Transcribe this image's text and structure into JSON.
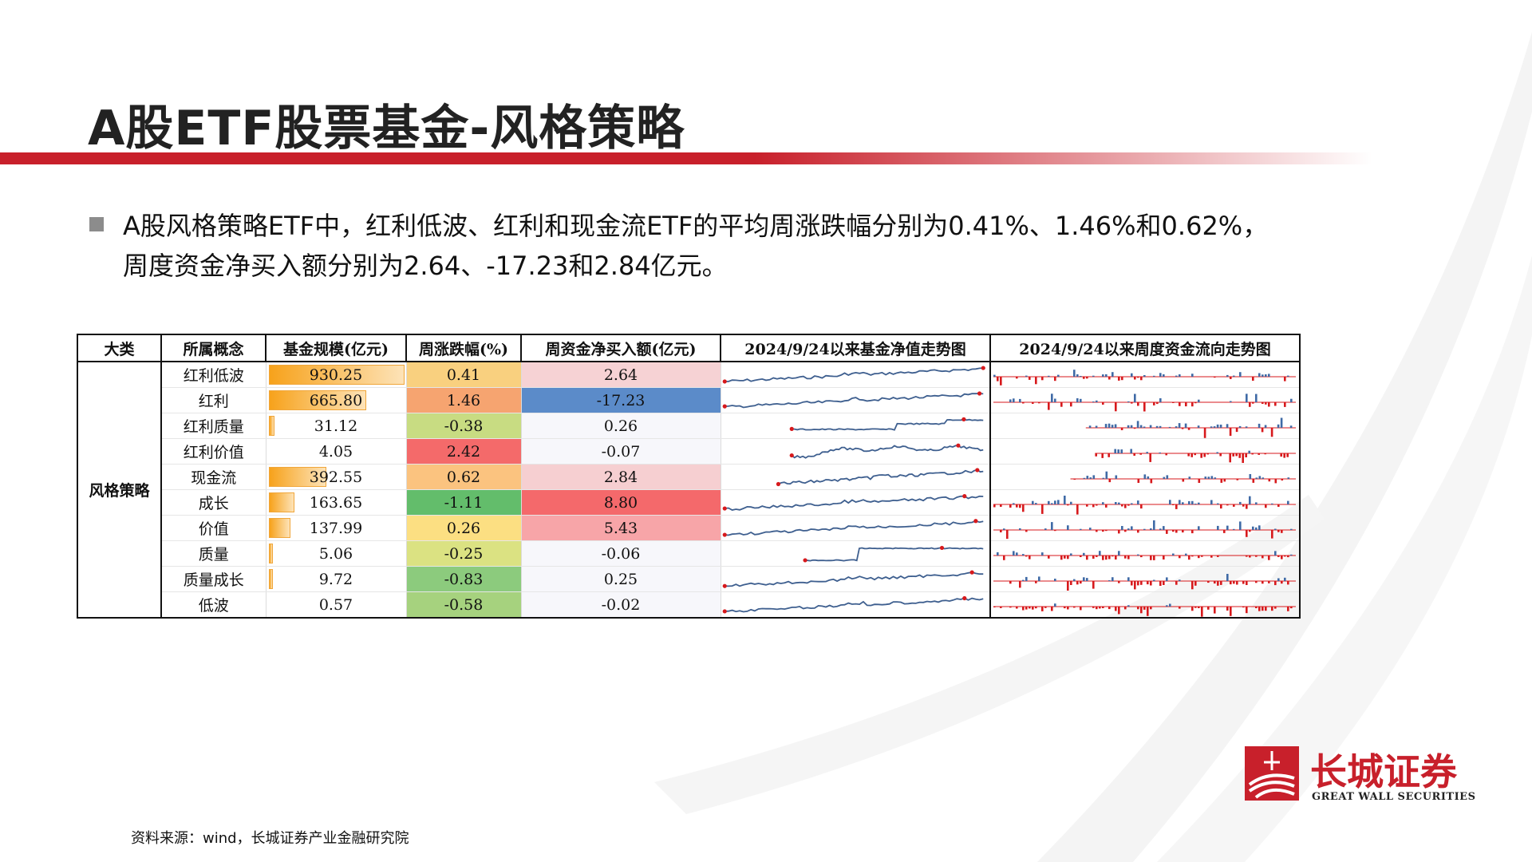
{
  "title": "A股ETF股票基金-风格策略",
  "summary": "A股风格策略ETF中，红利低波、红利和现金流ETF的平均周涨跌幅分别为0.41%、1.46%和0.62%，周度资金净买入额分别为2.64、-17.23和2.84亿元。",
  "table": {
    "headers": [
      "大类",
      "所属概念",
      "基金规模(亿元)",
      "周涨跌幅(%)",
      "周资金净买入额(亿元)",
      "2024/9/24以来基金净值走势图",
      "2024/9/24以来周度资金流向走势图"
    ],
    "category": "风格策略",
    "rows": [
      {
        "concept": "红利低波",
        "scale": "930.25",
        "scale_frac": 1.0,
        "change": "0.41",
        "change_color": "#f9d07f",
        "flow": "2.64",
        "flow_color": "#f6d2d4"
      },
      {
        "concept": "红利",
        "scale": "665.80",
        "scale_frac": 0.72,
        "change": "1.46",
        "change_color": "#f6a470",
        "flow": "-17.23",
        "flow_color": "#5b8bc9"
      },
      {
        "concept": "红利质量",
        "scale": "31.12",
        "scale_frac": 0.03,
        "change": "-0.38",
        "change_color": "#c8dc82",
        "flow": "0.26",
        "flow_color": "#f7f7fb"
      },
      {
        "concept": "红利价值",
        "scale": "4.05",
        "scale_frac": 0.0,
        "change": "2.42",
        "change_color": "#f46a6a",
        "flow": "-0.07",
        "flow_color": "#f7f7fb"
      },
      {
        "concept": "现金流",
        "scale": "392.55",
        "scale_frac": 0.42,
        "change": "0.62",
        "change_color": "#fbc37f",
        "flow": "2.84",
        "flow_color": "#f6cfd1"
      },
      {
        "concept": "成长",
        "scale": "163.65",
        "scale_frac": 0.18,
        "change": "-1.11",
        "change_color": "#63bd6b",
        "flow": "8.80",
        "flow_color": "#f4696b"
      },
      {
        "concept": "价值",
        "scale": "137.99",
        "scale_frac": 0.15,
        "change": "0.26",
        "change_color": "#fcdf82",
        "flow": "5.43",
        "flow_color": "#f7a5a8"
      },
      {
        "concept": "质量",
        "scale": "5.06",
        "scale_frac": 0.005,
        "change": "-0.25",
        "change_color": "#dbe282",
        "flow": "-0.06",
        "flow_color": "#f7f7fb"
      },
      {
        "concept": "质量成长",
        "scale": "9.72",
        "scale_frac": 0.01,
        "change": "-0.83",
        "change_color": "#8ccb7d",
        "flow": "0.25",
        "flow_color": "#f7f7fb"
      },
      {
        "concept": "低波",
        "scale": "0.57",
        "scale_frac": 0.0,
        "change": "-0.58",
        "change_color": "#a6d27e",
        "flow": "-0.02",
        "flow_color": "#f7f7fb"
      }
    ]
  },
  "colors": {
    "accent_red": "#c8202b",
    "line_blue": "#3e5f8f",
    "bar_blue": "#3f6aa6",
    "bar_red": "#d7191c"
  },
  "logo": {
    "cn": "长城证券",
    "en": "GREAT WALL SECURITIES"
  },
  "source": "资料来源：wind，长城证券产业金融研究院"
}
